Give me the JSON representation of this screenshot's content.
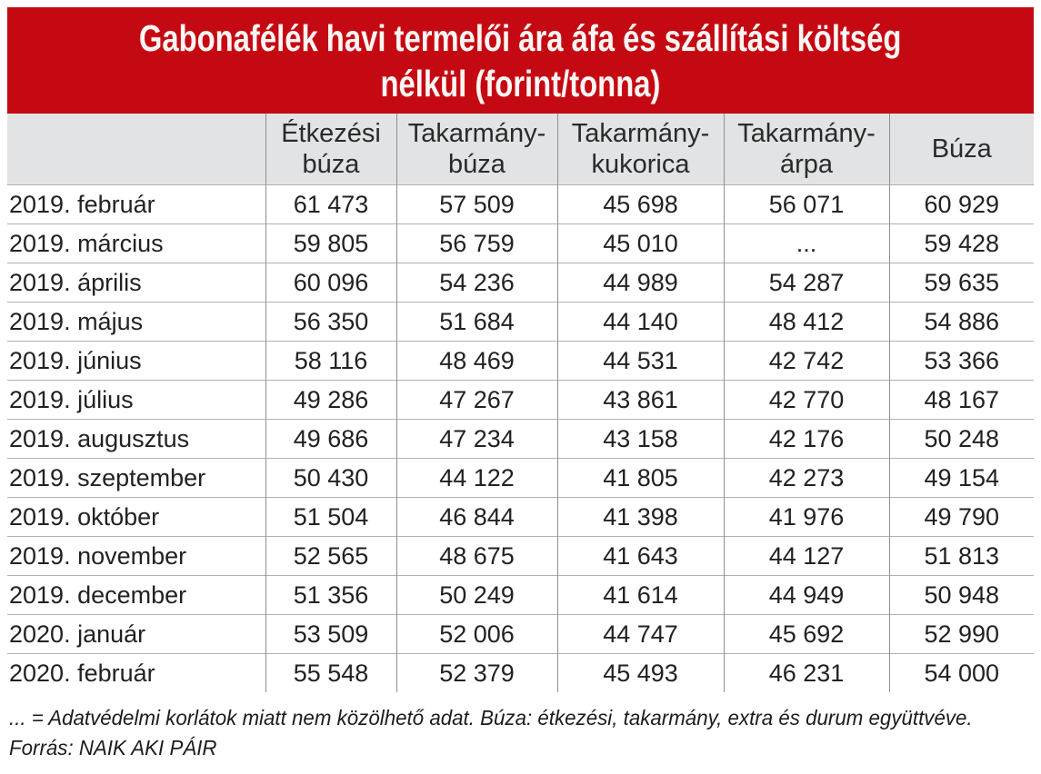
{
  "accent_color": "#c50913",
  "header_bg_color": "#e2e3e4",
  "grid_line_color": "#8f8f8f",
  "header": {
    "title_lines": [
      "Gabonafélék havi termelői ára áfa és szállítási költség",
      "nélkül (forint/tonna)"
    ]
  },
  "table": {
    "columns": [
      "",
      "Étkezési\nbúza",
      "Takarmány-\nbúza",
      "Takarmány-\nkukorica",
      "Takarmány-\nárpa",
      "Búza"
    ],
    "rows": [
      {
        "label": "2019. február",
        "values": [
          "61 473",
          "57 509",
          "45 698",
          "56 071",
          "60 929"
        ]
      },
      {
        "label": "2019. március",
        "values": [
          "59 805",
          "56 759",
          "45 010",
          "...",
          "59 428"
        ]
      },
      {
        "label": "2019. április",
        "values": [
          "60 096",
          "54 236",
          "44 989",
          "54 287",
          "59 635"
        ]
      },
      {
        "label": "2019. május",
        "values": [
          "56 350",
          "51 684",
          "44 140",
          "48 412",
          "54 886"
        ]
      },
      {
        "label": "2019. június",
        "values": [
          "58 116",
          "48 469",
          "44 531",
          "42 742",
          "53 366"
        ]
      },
      {
        "label": "2019. július",
        "values": [
          "49 286",
          "47 267",
          "43 861",
          "42 770",
          "48 167"
        ]
      },
      {
        "label": "2019. augusztus",
        "values": [
          "49 686",
          "47 234",
          "43 158",
          "42 176",
          "50 248"
        ]
      },
      {
        "label": "2019. szeptember",
        "values": [
          "50 430",
          "44 122",
          "41 805",
          "42 273",
          "49 154"
        ]
      },
      {
        "label": "2019. október",
        "values": [
          "51 504",
          "46 844",
          "41 398",
          "41 976",
          "49 790"
        ]
      },
      {
        "label": "2019. november",
        "values": [
          "52 565",
          "48 675",
          "41 643",
          "44 127",
          "51 813"
        ]
      },
      {
        "label": "2019. december",
        "values": [
          "51 356",
          "50 249",
          "41 614",
          "44 949",
          "50 948"
        ]
      },
      {
        "label": "2020. január",
        "values": [
          "53 509",
          "52 006",
          "44 747",
          "45 692",
          "52 990"
        ]
      },
      {
        "label": "2020. február",
        "values": [
          "55 548",
          "52 379",
          "45 493",
          "46 231",
          "54 000"
        ]
      }
    ]
  },
  "footnotes": {
    "note": "... = Adatvédelmi korlátok miatt nem közölhető adat. Búza: étkezési, takarmány, extra és durum együttvéve.",
    "source": "Forrás: NAIK AKI PÁIR"
  },
  "chart_data": {
    "type": "table",
    "title": "Gabonafélék havi termelői ára áfa és szállítási költség nélkül (forint/tonna)",
    "unit": "forint/tonna",
    "categories": [
      "2019. február",
      "2019. március",
      "2019. április",
      "2019. május",
      "2019. június",
      "2019. július",
      "2019. augusztus",
      "2019. szeptember",
      "2019. október",
      "2019. november",
      "2019. december",
      "2020. január",
      "2020. február"
    ],
    "series": [
      {
        "name": "Étkezési búza",
        "values": [
          61473,
          59805,
          60096,
          56350,
          58116,
          49286,
          49686,
          50430,
          51504,
          52565,
          51356,
          53509,
          55548
        ]
      },
      {
        "name": "Takarmány-búza",
        "values": [
          57509,
          56759,
          54236,
          51684,
          48469,
          47267,
          47234,
          44122,
          46844,
          48675,
          50249,
          52006,
          52379
        ]
      },
      {
        "name": "Takarmány-kukorica",
        "values": [
          45698,
          45010,
          44989,
          44140,
          44531,
          43861,
          43158,
          41805,
          41398,
          41643,
          41614,
          44747,
          45493
        ]
      },
      {
        "name": "Takarmány-árpa",
        "values": [
          56071,
          null,
          54287,
          48412,
          42742,
          42770,
          42176,
          42273,
          41976,
          44127,
          44949,
          45692,
          46231
        ]
      },
      {
        "name": "Búza",
        "values": [
          60929,
          59428,
          59635,
          54886,
          53366,
          48167,
          50248,
          49154,
          49790,
          51813,
          50948,
          52990,
          54000
        ]
      }
    ],
    "missing_marker": "...",
    "note": "... = Adatvédelmi korlátok miatt nem közölhető adat. Búza: étkezési, takarmány, extra és durum együttvéve.",
    "source": "Forrás: NAIK AKI PÁIR"
  }
}
